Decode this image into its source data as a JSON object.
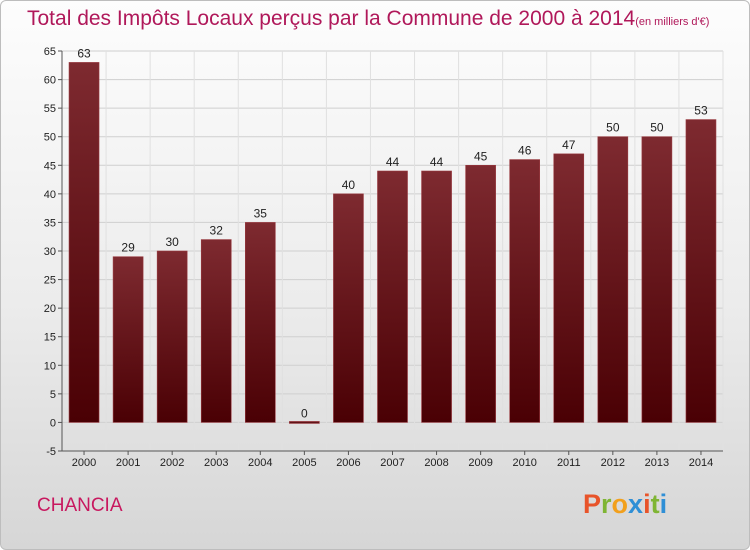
{
  "title": "Total des Impôts Locaux perçus par la Commune de 2000 à 2014",
  "title_unit": "(en milliers d'€)",
  "commune": "CHANCIA",
  "logo": {
    "text": "Proxiti",
    "colors": [
      "#e8542a",
      "#7fb534",
      "#f2a01c",
      "#2f8fd6",
      "#e8542a",
      "#7fb534",
      "#2f8fd6"
    ]
  },
  "colors": {
    "title": "#b0185a",
    "bar_top": "#7e2a30",
    "bar_bottom": "#4a0004",
    "commune": "#c8185f"
  },
  "chart_data": {
    "type": "bar",
    "categories": [
      "2000",
      "2001",
      "2002",
      "2003",
      "2004",
      "2005",
      "2006",
      "2007",
      "2008",
      "2009",
      "2010",
      "2011",
      "2012",
      "2013",
      "2014"
    ],
    "values": [
      63,
      29,
      30,
      32,
      35,
      0,
      40,
      44,
      44,
      45,
      46,
      47,
      50,
      50,
      53
    ],
    "ylim": [
      -5,
      65
    ],
    "yticks": [
      -5,
      0,
      5,
      10,
      15,
      20,
      25,
      30,
      35,
      40,
      45,
      50,
      55,
      60,
      65
    ],
    "grid": true
  }
}
